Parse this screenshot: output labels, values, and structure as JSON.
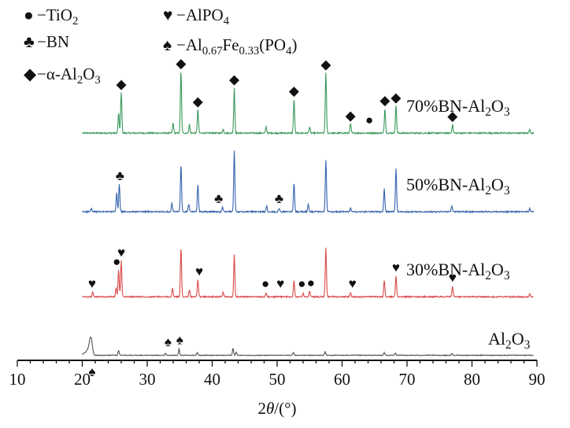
{
  "chart_data": {
    "type": "line",
    "xlabel_prefix": "2",
    "xlabel_theta": "θ",
    "xlabel_suffix": "/(°)",
    "xlim": [
      10,
      90
    ],
    "ylabel": "",
    "x_ticks": [
      10,
      20,
      30,
      40,
      50,
      60,
      70,
      80,
      90
    ],
    "legend": [
      {
        "symbol": "●",
        "symbol_name": "circle-marker",
        "parts": [
          {
            "t": "−TiO"
          },
          {
            "t": "2",
            "sub": true
          }
        ]
      },
      {
        "symbol": "♣",
        "symbol_name": "club-marker",
        "parts": [
          {
            "t": "−BN"
          }
        ]
      },
      {
        "symbol": "◆",
        "symbol_name": "diamond-marker",
        "parts": [
          {
            "t": "−α-Al"
          },
          {
            "t": "2",
            "sub": true
          },
          {
            "t": "O"
          },
          {
            "t": "3",
            "sub": true
          }
        ]
      },
      {
        "symbol": "♥",
        "symbol_name": "heart-marker",
        "parts": [
          {
            "t": "−AlPO"
          },
          {
            "t": "4",
            "sub": true
          }
        ]
      },
      {
        "symbol": "♠",
        "symbol_name": "spade-marker",
        "parts": [
          {
            "t": "−Al"
          },
          {
            "t": "0.67",
            "sub": true
          },
          {
            "t": "Fe"
          },
          {
            "t": "0.33",
            "sub": true
          },
          {
            "t": "(PO"
          },
          {
            "t": "4",
            "sub": true
          },
          {
            "t": ")"
          }
        ]
      }
    ],
    "series": [
      {
        "name_parts": [
          {
            "t": "70%BN-Al"
          },
          {
            "t": "2",
            "sub": true
          },
          {
            "t": "O"
          },
          {
            "t": "3",
            "sub": true
          }
        ],
        "color": "#3a9a5c",
        "peaks": [
          [
            25.6,
            0.32
          ],
          [
            26.0,
            0.66
          ],
          [
            34.0,
            0.16
          ],
          [
            35.2,
            1.0
          ],
          [
            36.5,
            0.14
          ],
          [
            37.8,
            0.38
          ],
          [
            41.7,
            0.06
          ],
          [
            43.4,
            0.74
          ],
          [
            48.3,
            0.1
          ],
          [
            52.6,
            0.55
          ],
          [
            55.0,
            0.1
          ],
          [
            57.5,
            0.98
          ],
          [
            61.3,
            0.15
          ],
          [
            66.6,
            0.4
          ],
          [
            68.3,
            0.44
          ],
          [
            77.0,
            0.14
          ],
          [
            88.9,
            0.06
          ]
        ],
        "markers": [
          {
            "x": 26.0,
            "s": "◆"
          },
          {
            "x": 35.2,
            "s": "◆"
          },
          {
            "x": 37.8,
            "s": "◆"
          },
          {
            "x": 43.4,
            "s": "◆"
          },
          {
            "x": 52.6,
            "s": "◆"
          },
          {
            "x": 57.5,
            "s": "◆"
          },
          {
            "x": 61.3,
            "s": "◆"
          },
          {
            "x": 64.2,
            "s": "●"
          },
          {
            "x": 66.6,
            "s": "◆"
          },
          {
            "x": 68.3,
            "s": "◆"
          },
          {
            "x": 77.0,
            "s": "◆"
          }
        ]
      },
      {
        "name_parts": [
          {
            "t": "50%BN-Al"
          },
          {
            "t": "2",
            "sub": true
          },
          {
            "t": "O"
          },
          {
            "t": "3",
            "sub": true
          }
        ],
        "color": "#3563ad",
        "peaks": [
          [
            21.4,
            0.05
          ],
          [
            25.3,
            0.3
          ],
          [
            25.7,
            0.44
          ],
          [
            33.8,
            0.14
          ],
          [
            35.2,
            0.74
          ],
          [
            36.4,
            0.12
          ],
          [
            37.8,
            0.44
          ],
          [
            41.6,
            0.08
          ],
          [
            43.4,
            0.98
          ],
          [
            48.4,
            0.1
          ],
          [
            50.3,
            0.05
          ],
          [
            52.6,
            0.46
          ],
          [
            54.8,
            0.12
          ],
          [
            57.5,
            0.82
          ],
          [
            61.3,
            0.06
          ],
          [
            66.5,
            0.36
          ],
          [
            68.3,
            0.68
          ],
          [
            76.9,
            0.09
          ],
          [
            88.9,
            0.05
          ]
        ],
        "markers": [
          {
            "x": 25.8,
            "s": "♣"
          },
          {
            "x": 41.0,
            "s": "♣"
          },
          {
            "x": 50.3,
            "s": "♣"
          }
        ]
      },
      {
        "name_parts": [
          {
            "t": "30%BN-Al"
          },
          {
            "t": "2",
            "sub": true
          },
          {
            "t": "O"
          },
          {
            "t": "3",
            "sub": true
          }
        ],
        "color": "#d94a4a",
        "peaks": [
          [
            21.6,
            0.08
          ],
          [
            25.2,
            0.16
          ],
          [
            25.6,
            0.48
          ],
          [
            26.0,
            0.64
          ],
          [
            33.9,
            0.15
          ],
          [
            35.2,
            0.87
          ],
          [
            36.5,
            0.12
          ],
          [
            37.8,
            0.3
          ],
          [
            41.7,
            0.08
          ],
          [
            43.4,
            0.75
          ],
          [
            48.3,
            0.07
          ],
          [
            52.6,
            0.29
          ],
          [
            54.0,
            0.06
          ],
          [
            55.0,
            0.1
          ],
          [
            57.5,
            0.87
          ],
          [
            61.3,
            0.07
          ],
          [
            66.5,
            0.29
          ],
          [
            68.3,
            0.37
          ],
          [
            77.0,
            0.19
          ],
          [
            88.9,
            0.06
          ]
        ],
        "markers": [
          {
            "x": 21.5,
            "s": "♥"
          },
          {
            "x": 25.3,
            "s": "●"
          },
          {
            "x": 26.0,
            "s": "♥"
          },
          {
            "x": 38.0,
            "s": "♥"
          },
          {
            "x": 48.2,
            "s": "●"
          },
          {
            "x": 50.5,
            "s": "♥"
          },
          {
            "x": 53.8,
            "s": "●"
          },
          {
            "x": 55.2,
            "s": "●"
          },
          {
            "x": 61.6,
            "s": "♥"
          },
          {
            "x": 68.3,
            "s": "♥"
          },
          {
            "x": 77.0,
            "s": "♥"
          }
        ]
      },
      {
        "name_parts": [
          {
            "t": "Al"
          },
          {
            "t": "2",
            "sub": true
          },
          {
            "t": "O"
          },
          {
            "t": "3",
            "sub": true
          }
        ],
        "color": "#555555",
        "peaks": [
          [
            20.3,
            0.06
          ],
          [
            20.8,
            0.14
          ],
          [
            21.3,
            0.58
          ],
          [
            25.6,
            0.15
          ],
          [
            32.8,
            0.06
          ],
          [
            34.9,
            0.21
          ],
          [
            37.7,
            0.09
          ],
          [
            43.2,
            0.22
          ],
          [
            43.7,
            0.09
          ],
          [
            52.5,
            0.1
          ],
          [
            57.4,
            0.12
          ],
          [
            66.5,
            0.08
          ],
          [
            68.2,
            0.07
          ],
          [
            76.9,
            0.05
          ]
        ],
        "markers": [
          {
            "x": 21.5,
            "s": "♠",
            "below": true
          },
          {
            "x": 33.2,
            "s": "♠"
          },
          {
            "x": 35.0,
            "s": "♠"
          }
        ]
      }
    ]
  }
}
